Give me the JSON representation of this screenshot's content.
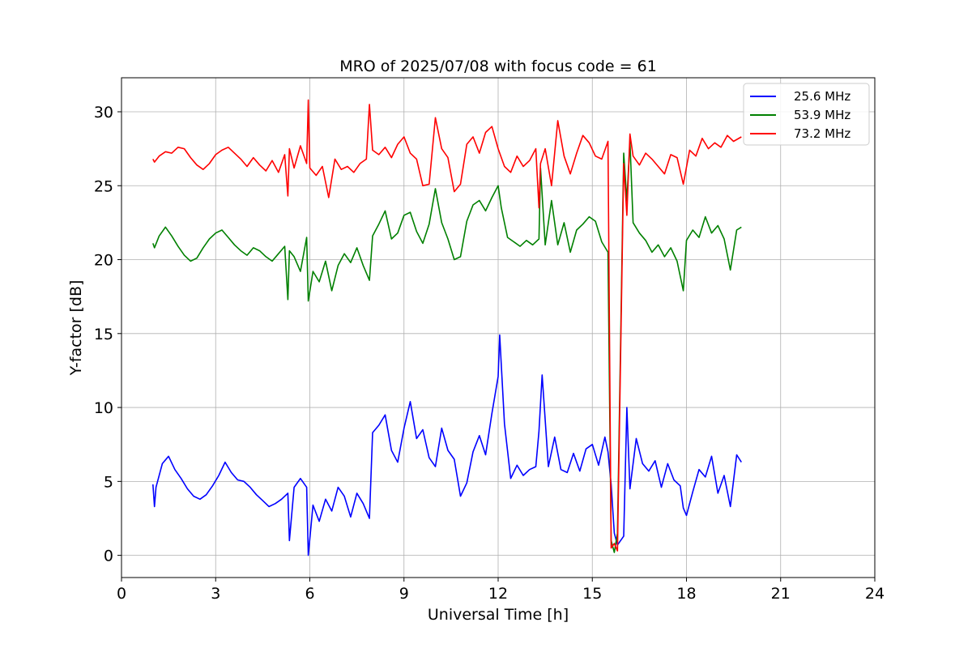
{
  "chart_data": {
    "type": "line",
    "title": "MRO of 2025/07/08 with focus code = 61",
    "xlabel": "Universal Time [h]",
    "ylabel": "Y-factor [dB]",
    "xlim": [
      0,
      24
    ],
    "ylim": [
      -1.5,
      32.3
    ],
    "xticks": [
      0,
      3,
      6,
      9,
      12,
      15,
      18,
      21,
      24
    ],
    "yticks": [
      0,
      5,
      10,
      15,
      20,
      25,
      30
    ],
    "grid": true,
    "legend_position": "upper right",
    "series": [
      {
        "name": "25.6 MHz",
        "color": "#0000ff",
        "x": [
          1.0,
          1.05,
          1.1,
          1.3,
          1.5,
          1.7,
          1.9,
          2.1,
          2.3,
          2.5,
          2.7,
          2.9,
          3.1,
          3.3,
          3.5,
          3.7,
          3.9,
          4.1,
          4.3,
          4.5,
          4.7,
          4.9,
          5.1,
          5.3,
          5.35,
          5.5,
          5.7,
          5.9,
          5.95,
          6.1,
          6.3,
          6.5,
          6.7,
          6.9,
          7.1,
          7.3,
          7.5,
          7.7,
          7.9,
          8.0,
          8.2,
          8.4,
          8.6,
          8.8,
          9.0,
          9.2,
          9.4,
          9.6,
          9.8,
          10.0,
          10.2,
          10.4,
          10.6,
          10.8,
          11.0,
          11.2,
          11.4,
          11.6,
          11.8,
          12.0,
          12.05,
          12.2,
          12.4,
          12.6,
          12.8,
          13.0,
          13.2,
          13.3,
          13.4,
          13.6,
          13.8,
          14.0,
          14.2,
          14.4,
          14.6,
          14.8,
          15.0,
          15.2,
          15.4,
          15.5,
          15.6,
          15.7,
          15.8,
          16.0,
          16.1,
          16.2,
          16.4,
          16.6,
          16.8,
          17.0,
          17.2,
          17.4,
          17.6,
          17.8,
          17.9,
          18.0,
          18.2,
          18.4,
          18.6,
          18.8,
          19.0,
          19.2,
          19.4,
          19.6,
          19.75
        ],
        "y": [
          4.8,
          3.3,
          4.6,
          6.2,
          6.7,
          5.8,
          5.2,
          4.5,
          4.0,
          3.8,
          4.1,
          4.7,
          5.4,
          6.3,
          5.6,
          5.1,
          5.0,
          4.6,
          4.1,
          3.7,
          3.3,
          3.5,
          3.8,
          4.2,
          1.0,
          4.6,
          5.2,
          4.6,
          0.0,
          3.4,
          2.3,
          3.8,
          3.0,
          4.6,
          4.0,
          2.6,
          4.2,
          3.5,
          2.5,
          8.3,
          8.8,
          9.5,
          7.1,
          6.3,
          8.6,
          10.4,
          7.9,
          8.5,
          6.6,
          6.0,
          8.6,
          7.1,
          6.5,
          4.0,
          4.9,
          7.0,
          8.1,
          6.8,
          9.6,
          12.1,
          14.9,
          8.9,
          5.2,
          6.1,
          5.4,
          5.8,
          6.0,
          8.4,
          12.2,
          6.0,
          8.0,
          5.8,
          5.6,
          6.9,
          5.7,
          7.2,
          7.5,
          6.1,
          8.0,
          7.0,
          4.8,
          1.5,
          0.7,
          1.3,
          10.0,
          4.5,
          7.9,
          6.2,
          5.7,
          6.4,
          4.6,
          6.2,
          5.1,
          4.7,
          3.2,
          2.7,
          4.3,
          5.8,
          5.3,
          6.7,
          4.2,
          5.4,
          3.3,
          6.8,
          6.3
        ]
      },
      {
        "name": "53.9 MHz",
        "color": "#008000",
        "x": [
          1.0,
          1.05,
          1.2,
          1.4,
          1.6,
          1.8,
          2.0,
          2.2,
          2.4,
          2.6,
          2.8,
          3.0,
          3.2,
          3.4,
          3.6,
          3.8,
          4.0,
          4.2,
          4.4,
          4.6,
          4.8,
          5.0,
          5.2,
          5.3,
          5.35,
          5.5,
          5.7,
          5.9,
          5.95,
          6.1,
          6.3,
          6.5,
          6.7,
          6.9,
          7.1,
          7.3,
          7.5,
          7.7,
          7.9,
          8.0,
          8.2,
          8.4,
          8.6,
          8.8,
          9.0,
          9.2,
          9.4,
          9.6,
          9.8,
          10.0,
          10.2,
          10.4,
          10.6,
          10.8,
          11.0,
          11.2,
          11.4,
          11.6,
          11.8,
          12.0,
          12.1,
          12.3,
          12.5,
          12.7,
          12.9,
          13.1,
          13.3,
          13.35,
          13.5,
          13.7,
          13.9,
          14.1,
          14.3,
          14.5,
          14.7,
          14.9,
          15.1,
          15.3,
          15.5,
          15.6,
          15.7,
          15.8,
          16.0,
          16.1,
          16.2,
          16.3,
          16.5,
          16.7,
          16.9,
          17.1,
          17.3,
          17.5,
          17.7,
          17.9,
          18.0,
          18.2,
          18.4,
          18.6,
          18.8,
          19.0,
          19.2,
          19.4,
          19.6,
          19.75
        ],
        "y": [
          21.1,
          20.8,
          21.6,
          22.2,
          21.6,
          20.9,
          20.3,
          19.9,
          20.1,
          20.8,
          21.4,
          21.8,
          22.0,
          21.5,
          21.0,
          20.6,
          20.3,
          20.8,
          20.6,
          20.2,
          19.9,
          20.4,
          20.9,
          17.3,
          20.6,
          20.2,
          19.2,
          21.5,
          17.2,
          19.2,
          18.5,
          19.9,
          17.9,
          19.6,
          20.4,
          19.8,
          20.8,
          19.6,
          18.6,
          21.6,
          22.4,
          23.3,
          21.4,
          21.8,
          23.0,
          23.2,
          21.9,
          21.1,
          22.4,
          24.8,
          22.5,
          21.4,
          20.0,
          20.2,
          22.6,
          23.7,
          24.0,
          23.3,
          24.2,
          25.0,
          23.5,
          21.5,
          21.2,
          20.9,
          21.3,
          21.0,
          21.4,
          26.2,
          21.0,
          24.0,
          21.0,
          22.5,
          20.5,
          22.0,
          22.4,
          22.9,
          22.6,
          21.2,
          20.5,
          1.0,
          0.2,
          1.5,
          27.2,
          24.0,
          28.0,
          22.5,
          21.8,
          21.3,
          20.5,
          21.0,
          20.2,
          20.8,
          19.9,
          17.9,
          21.3,
          22.0,
          21.5,
          22.9,
          21.8,
          22.3,
          21.4,
          19.3,
          22.0,
          22.2
        ]
      },
      {
        "name": "73.2 MHz",
        "color": "#ff0000",
        "x": [
          1.0,
          1.05,
          1.2,
          1.4,
          1.6,
          1.8,
          2.0,
          2.2,
          2.4,
          2.6,
          2.8,
          3.0,
          3.2,
          3.4,
          3.6,
          3.8,
          4.0,
          4.2,
          4.4,
          4.6,
          4.8,
          5.0,
          5.2,
          5.3,
          5.35,
          5.5,
          5.7,
          5.9,
          5.95,
          6.0,
          6.2,
          6.4,
          6.6,
          6.8,
          7.0,
          7.2,
          7.4,
          7.6,
          7.8,
          7.9,
          8.0,
          8.2,
          8.4,
          8.6,
          8.8,
          9.0,
          9.2,
          9.4,
          9.6,
          9.8,
          10.0,
          10.2,
          10.4,
          10.6,
          10.8,
          11.0,
          11.2,
          11.4,
          11.6,
          11.8,
          12.0,
          12.2,
          12.4,
          12.6,
          12.8,
          13.0,
          13.2,
          13.3,
          13.35,
          13.5,
          13.7,
          13.9,
          14.1,
          14.3,
          14.5,
          14.7,
          14.9,
          15.1,
          15.3,
          15.5,
          15.6,
          15.7,
          15.8,
          16.0,
          16.1,
          16.2,
          16.3,
          16.5,
          16.7,
          16.9,
          17.1,
          17.3,
          17.5,
          17.7,
          17.9,
          18.1,
          18.3,
          18.5,
          18.7,
          18.9,
          19.1,
          19.3,
          19.5,
          19.75
        ],
        "y": [
          26.8,
          26.6,
          27.0,
          27.3,
          27.2,
          27.6,
          27.5,
          26.9,
          26.4,
          26.1,
          26.5,
          27.1,
          27.4,
          27.6,
          27.2,
          26.8,
          26.3,
          26.9,
          26.4,
          26.0,
          26.7,
          25.9,
          27.1,
          24.3,
          27.5,
          26.2,
          27.7,
          26.5,
          30.8,
          26.2,
          25.7,
          26.3,
          24.2,
          26.8,
          26.1,
          26.3,
          25.9,
          26.5,
          26.8,
          30.5,
          27.4,
          27.1,
          27.6,
          26.9,
          27.8,
          28.3,
          27.2,
          26.8,
          25.0,
          25.1,
          29.6,
          27.5,
          26.9,
          24.6,
          25.1,
          27.8,
          28.3,
          27.2,
          28.6,
          29.0,
          27.5,
          26.3,
          25.9,
          27.0,
          26.3,
          26.7,
          27.5,
          23.5,
          26.5,
          27.5,
          25.0,
          29.4,
          27.0,
          25.8,
          27.2,
          28.4,
          27.9,
          27.0,
          26.8,
          28.0,
          0.5,
          0.8,
          0.3,
          26.5,
          23.0,
          28.5,
          27.0,
          26.4,
          27.2,
          26.8,
          26.3,
          25.8,
          27.1,
          26.9,
          25.1,
          27.4,
          27.0,
          28.2,
          27.5,
          27.9,
          27.6,
          28.4,
          28.0,
          28.3
        ]
      }
    ]
  }
}
